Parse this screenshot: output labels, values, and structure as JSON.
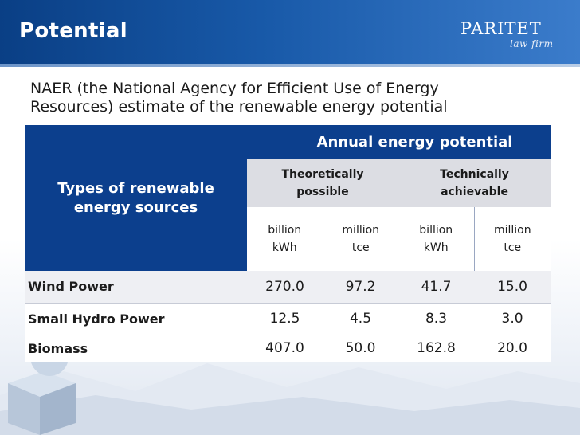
{
  "header": {
    "title": "Potential",
    "logo_main": "PARITET",
    "logo_sub": "law firm"
  },
  "intro": {
    "line1": "NAER (the National Agency for Efficient Use of Energy",
    "line2": "Resources) estimate of the renewable energy potential"
  },
  "table": {
    "annual_header": "Annual energy potential",
    "types_header_line1": "Types of renewable",
    "types_header_line2": "energy sources",
    "theoretically_line1": "Theoretically",
    "theoretically_line2": "possible",
    "technically_line1": "Technically",
    "technically_line2": "achievable",
    "units": [
      {
        "line1": "billion",
        "line2": "kWh"
      },
      {
        "line1": "million",
        "line2": "tce"
      },
      {
        "line1": "billion",
        "line2": "kWh"
      },
      {
        "line1": "million",
        "line2": "tce"
      }
    ],
    "rows": [
      {
        "name": "Wind Power",
        "values": [
          "270.0",
          "97.2",
          "41.7",
          "15.0"
        ]
      },
      {
        "name": "Small Hydro Power",
        "values": [
          "12.5",
          "4.5",
          "8.3",
          "3.0"
        ]
      },
      {
        "name": "Biomass",
        "values": [
          "407.0",
          "50.0",
          "162.8",
          "20.0"
        ]
      }
    ]
  },
  "colors": {
    "header_blue": "#0a3f85",
    "table_navy": "#0c3f8d",
    "table_grey": "#dcdde3"
  }
}
